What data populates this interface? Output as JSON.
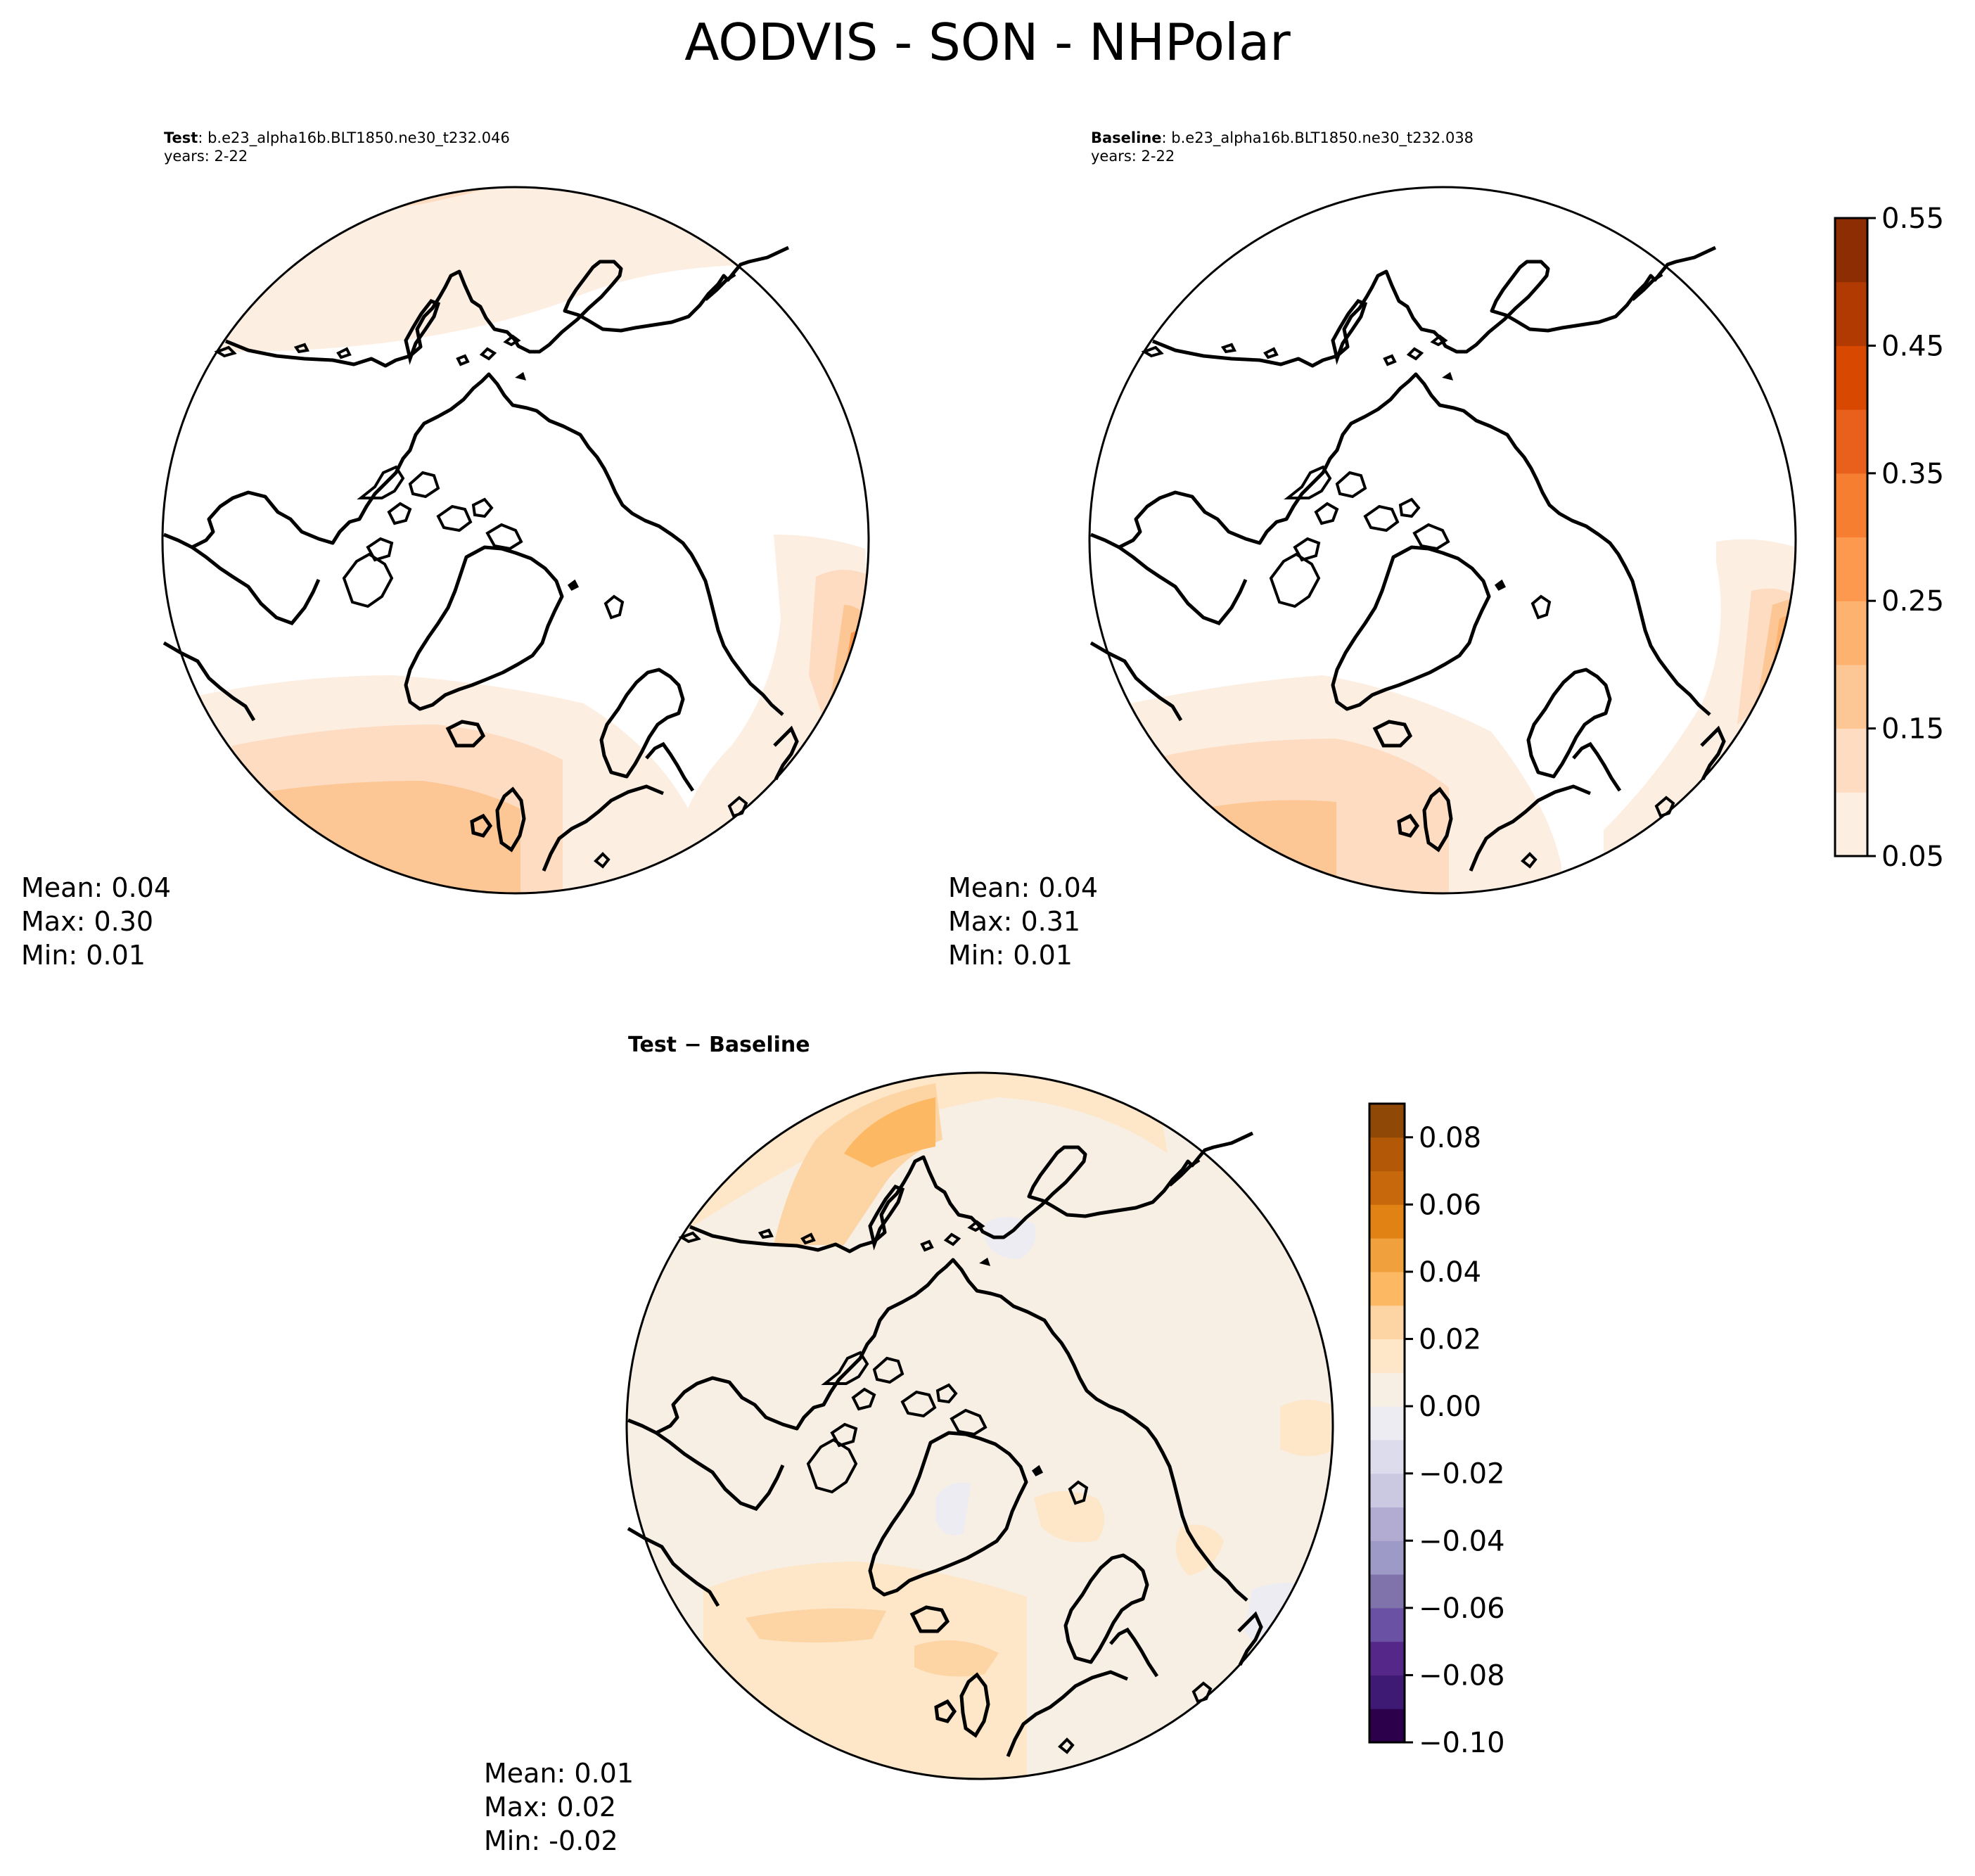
{
  "figure": {
    "title": "AODVIS - SON - NHPolar"
  },
  "panels": [
    {
      "id": "test",
      "label": "Test",
      "case": ": b.e23_alpha16b.BLT1850.ne30_t232.046",
      "years": "years: 2-22",
      "stats": {
        "mean": "Mean:  0.04",
        "max": "Max:  0.30",
        "min": "Min:  0.01"
      }
    },
    {
      "id": "baseline",
      "label": "Baseline",
      "case": ": b.e23_alpha16b.BLT1850.ne30_t232.038",
      "years": "years: 2-22",
      "stats": {
        "mean": "Mean:  0.04",
        "max": "Max:  0.31",
        "min": "Min:  0.01"
      }
    },
    {
      "id": "difference",
      "title": "Test − Baseline",
      "stats": {
        "mean": "Mean:  0.01",
        "max": "Max:  0.02",
        "min": "Min: -0.02"
      }
    }
  ],
  "chart_data": [
    {
      "type": "heatmap",
      "title": "AODVIS - SON - NHPolar",
      "projection": "north-polar-stereographic",
      "colorbar": {
        "levels": [
          0.05,
          0.1,
          0.15,
          0.2,
          0.25,
          0.3,
          0.35,
          0.4,
          0.45,
          0.5,
          0.55
        ],
        "tick_labels": [
          "0.05",
          "0.15",
          "0.25",
          "0.35",
          "0.45",
          "0.55"
        ],
        "colors": [
          "#fdeee2",
          "#fddcc2",
          "#fcc795",
          "#fdb270",
          "#fc994f",
          "#f57e31",
          "#e8601c",
          "#d94801",
          "#b13a03",
          "#8c2d04"
        ],
        "shared_by": [
          "Test",
          "Baseline"
        ]
      },
      "series": [
        {
          "name": "Test",
          "mean": 0.04,
          "max": 0.3,
          "min": 0.01
        },
        {
          "name": "Baseline",
          "mean": 0.04,
          "max": 0.31,
          "min": 0.01
        }
      ]
    },
    {
      "type": "heatmap",
      "title": "Test − Baseline",
      "projection": "north-polar-stereographic",
      "colorbar": {
        "levels": [
          -0.1,
          -0.09,
          -0.08,
          -0.07,
          -0.06,
          -0.05,
          -0.04,
          -0.03,
          -0.02,
          -0.01,
          0.0,
          0.01,
          0.02,
          0.03,
          0.04,
          0.05,
          0.06,
          0.07,
          0.08,
          0.09
        ],
        "tick_labels": [
          "−0.10",
          "−0.08",
          "−0.06",
          "−0.04",
          "−0.02",
          "0.00",
          "0.02",
          "0.04",
          "0.06",
          "0.08"
        ],
        "colors": [
          "#2d004b",
          "#3f1a75",
          "#542788",
          "#6a51a3",
          "#8073ac",
          "#9e9ac8",
          "#b2abd2",
          "#cbc9e2",
          "#dcdcec",
          "#ececf2",
          "#f7efe3",
          "#fee6c8",
          "#fdd4a4",
          "#fdb863",
          "#f0a03c",
          "#e08214",
          "#c8680d",
          "#b35806",
          "#8f4806"
        ]
      },
      "series": [
        {
          "name": "Test − Baseline",
          "mean": 0.01,
          "max": 0.02,
          "min": -0.02
        }
      ]
    }
  ]
}
